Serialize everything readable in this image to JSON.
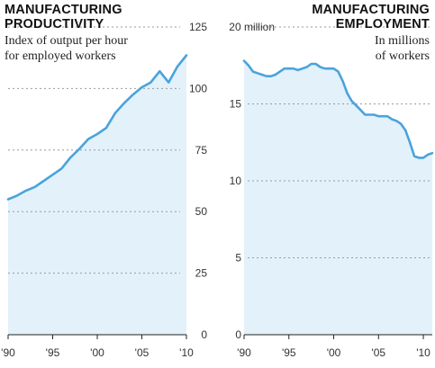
{
  "colors": {
    "line": "#4aa3dc",
    "fill": "#e3f1fb",
    "grid": "#9a9a9a",
    "text": "#111111"
  },
  "chart_data": [
    {
      "type": "area",
      "title_lines": [
        "MANUFACTURING",
        "PRODUCTIVITY"
      ],
      "subtitle_lines": [
        "Index of output per hour",
        "for employed workers"
      ],
      "x_ticks": [
        "'90",
        "'95",
        "'00",
        "'05",
        "'10"
      ],
      "x_tick_values": [
        1990,
        1995,
        2000,
        2005,
        2010
      ],
      "y_ticks": [
        "125",
        "100",
        "75",
        "50",
        "25",
        "0"
      ],
      "y_tick_values": [
        125,
        100,
        75,
        50,
        25,
        0
      ],
      "xlim": [
        1990,
        2010
      ],
      "ylim": [
        0,
        125
      ],
      "y_axis_side": "right",
      "grid": true,
      "x": [
        1990,
        1991,
        1992,
        1993,
        1994,
        1995,
        1996,
        1997,
        1998,
        1999,
        2000,
        2001,
        2002,
        2003,
        2004,
        2005,
        2006,
        2007,
        2008,
        2009,
        2010
      ],
      "values": [
        55,
        56.5,
        58.5,
        60,
        62.5,
        65,
        67.5,
        72,
        75.5,
        79.5,
        81.5,
        84,
        90,
        94,
        97.5,
        100.5,
        102.5,
        107,
        102.5,
        109,
        113.5
      ]
    },
    {
      "type": "area",
      "title_lines": [
        "MANUFACTURING",
        "EMPLOYMENT"
      ],
      "subtitle_lines": [
        "In millions",
        "of workers"
      ],
      "x_ticks": [
        "'90",
        "'95",
        "'00",
        "'05",
        "'10"
      ],
      "x_tick_values": [
        1990,
        1995,
        2000,
        2005,
        2010
      ],
      "y_ticks": [
        "20 million",
        "15",
        "10",
        "5",
        "0"
      ],
      "y_tick_values": [
        20,
        15,
        10,
        5,
        0
      ],
      "xlim": [
        1990,
        2011
      ],
      "ylim": [
        0,
        20
      ],
      "y_axis_side": "left",
      "grid": true,
      "x": [
        1990,
        1990.5,
        1991,
        1991.5,
        1992,
        1992.5,
        1993,
        1993.5,
        1994,
        1994.5,
        1995,
        1995.5,
        1996,
        1996.5,
        1997,
        1997.5,
        1998,
        1998.5,
        1999,
        1999.5,
        2000,
        2000.5,
        2001,
        2001.5,
        2002,
        2002.5,
        2003,
        2003.5,
        2004,
        2004.5,
        2005,
        2005.5,
        2006,
        2006.5,
        2007,
        2007.5,
        2008,
        2008.5,
        2009,
        2009.5,
        2010,
        2010.5,
        2011
      ],
      "values": [
        17.8,
        17.5,
        17.1,
        17.0,
        16.9,
        16.8,
        16.8,
        16.9,
        17.1,
        17.3,
        17.3,
        17.3,
        17.2,
        17.3,
        17.4,
        17.6,
        17.6,
        17.4,
        17.3,
        17.3,
        17.3,
        17.1,
        16.5,
        15.7,
        15.2,
        14.9,
        14.6,
        14.3,
        14.3,
        14.3,
        14.2,
        14.2,
        14.2,
        14.0,
        13.9,
        13.7,
        13.3,
        12.5,
        11.6,
        11.5,
        11.5,
        11.7,
        11.8
      ]
    }
  ]
}
